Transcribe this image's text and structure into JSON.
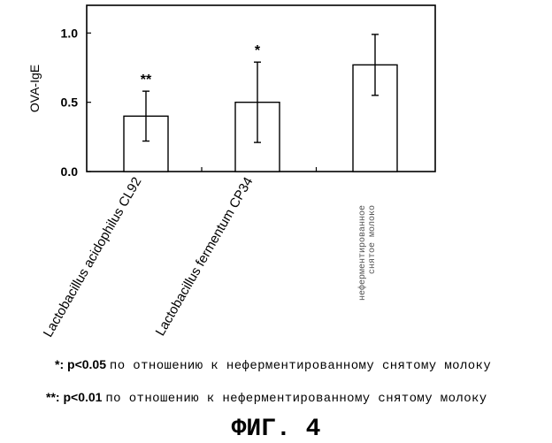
{
  "chart_data": {
    "type": "bar",
    "ylabel": "OVA-IgE",
    "ylim": [
      0.0,
      1.2
    ],
    "yticks": [
      "0.0",
      "0.5",
      "1.0"
    ],
    "ytick_values": [
      0.0,
      0.5,
      1.0
    ],
    "categories": [
      "Lactobacillus acidophilus CL92",
      "Lactobacillus fermentum CP34",
      "неферментированное снятое молоко"
    ],
    "category_lines": [
      [
        "Lactobacillus acidophilus CL92"
      ],
      [
        "Lactobacillus fermentum CP34"
      ],
      [
        "неферментированное",
        "снятое молоко"
      ]
    ],
    "values": [
      0.4,
      0.5,
      0.77
    ],
    "errors": [
      0.18,
      0.29,
      0.22
    ],
    "significance": [
      "**",
      "*",
      ""
    ],
    "bar_color": "#ffffff",
    "grid": false
  },
  "footnotes": [
    {
      "mark": "*",
      "cond": "p<0.05",
      "text": "по отношению к неферментированному снятому молоку"
    },
    {
      "mark": "**",
      "cond": "p<0.01",
      "text": "по отношению к неферментированному снятому молоку"
    }
  ],
  "figure_label": "ФИГ. 4"
}
